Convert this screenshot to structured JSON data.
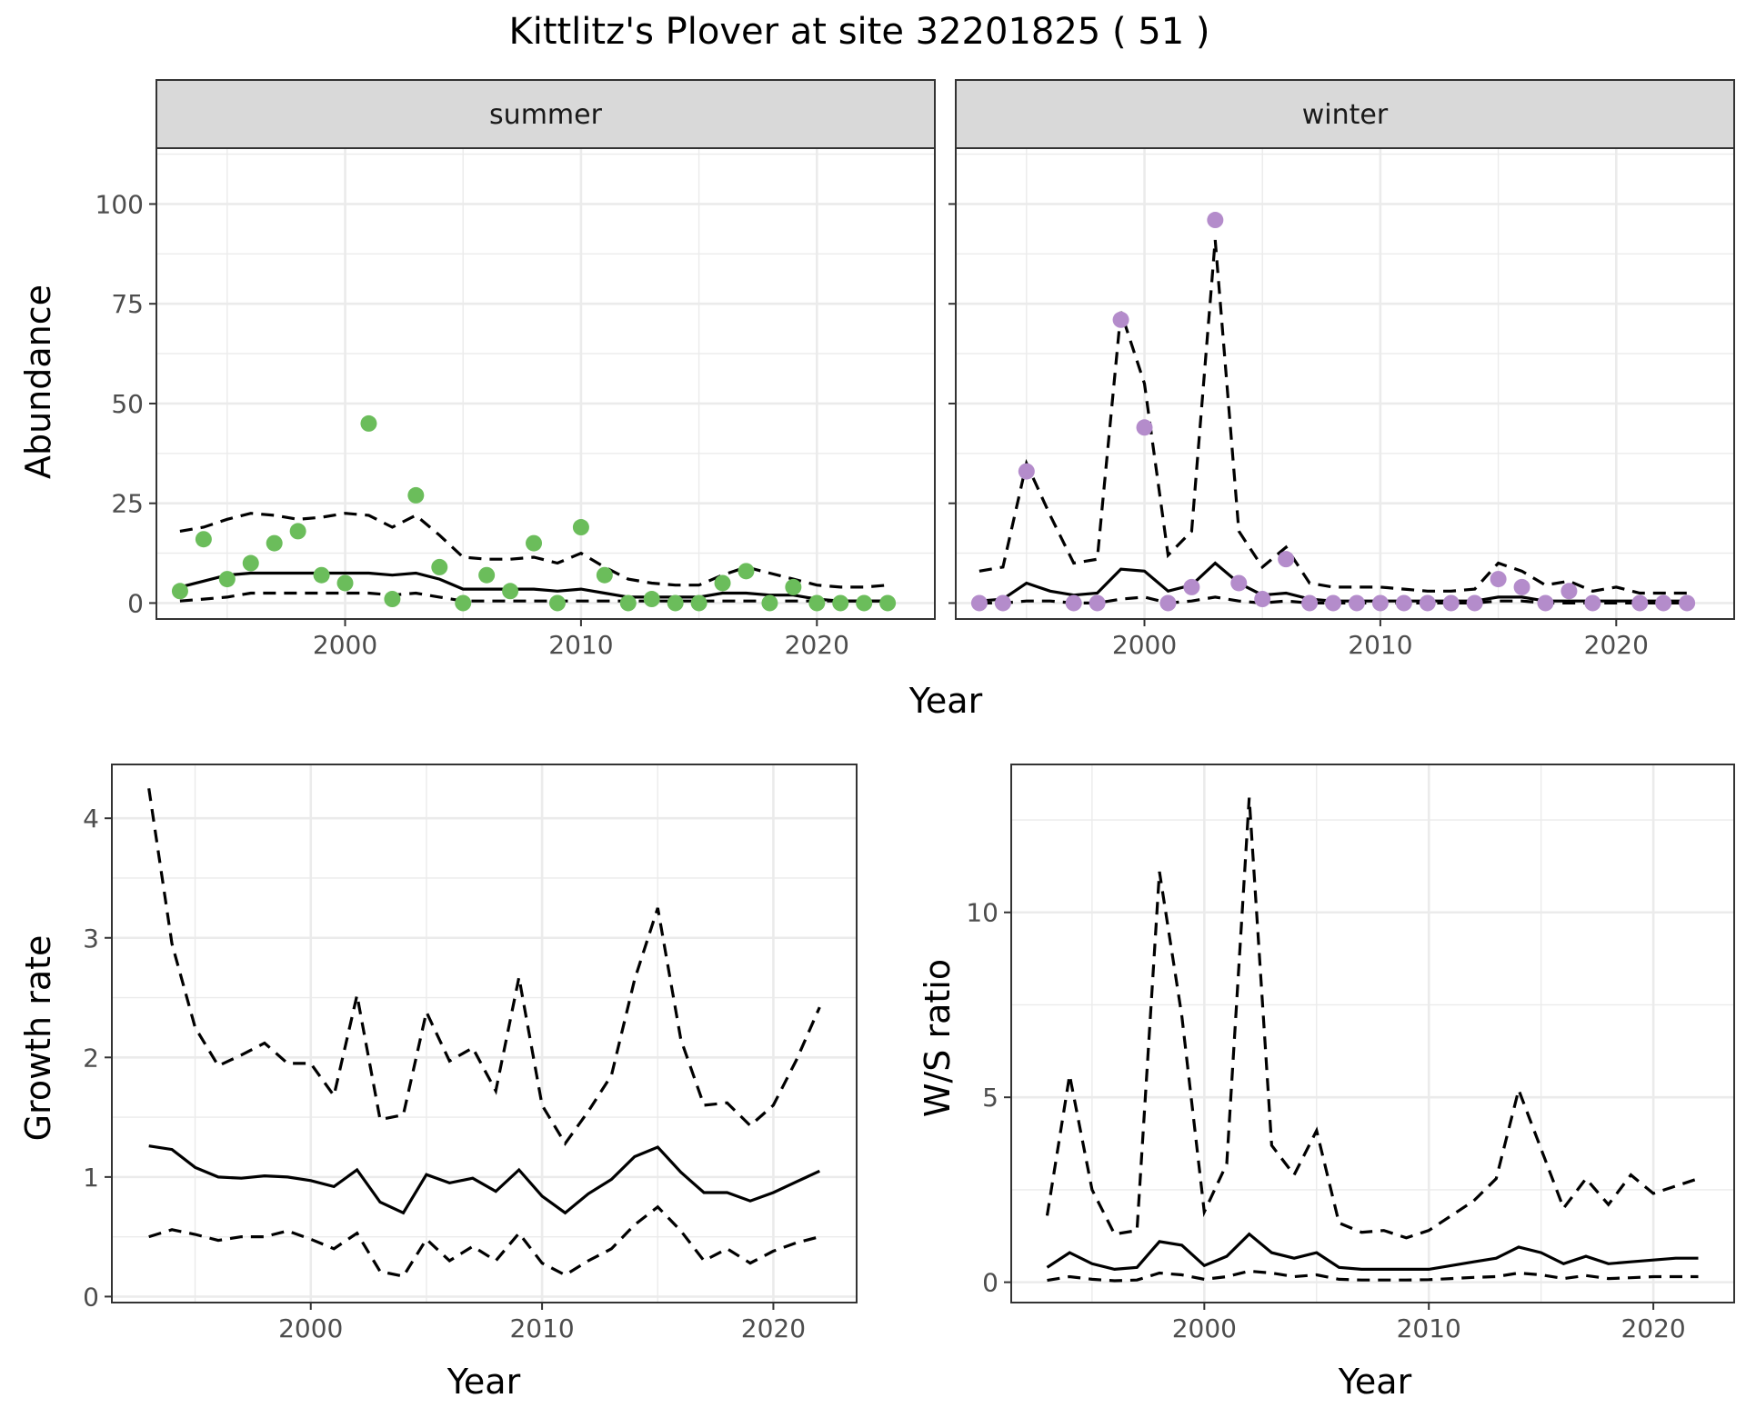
{
  "title": "Kittlitz's Plover at site 32201825 ( 51 )",
  "colors": {
    "summer_points": "#6BBD5B",
    "winter_points": "#B48CCB",
    "lines": "#000000",
    "strip_fill": "#D9D9D9",
    "grid": "#EBEBEB",
    "panel_border": "#333333"
  },
  "chart_data": [
    {
      "type": "scatter",
      "panel": "summer",
      "strip_label": "summer",
      "xlabel": "Year",
      "ylabel": "Abundance",
      "xlim": [
        1992,
        2025
      ],
      "ylim": [
        -4,
        114
      ],
      "xticks": [
        2000,
        2010,
        2020
      ],
      "yticks": [
        0,
        25,
        50,
        75,
        100
      ],
      "grid": true,
      "points": {
        "x": [
          1993,
          1994,
          1995,
          1996,
          1997,
          1998,
          1999,
          2000,
          2001,
          2002,
          2003,
          2004,
          2005,
          2006,
          2007,
          2008,
          2009,
          2010,
          2011,
          2012,
          2013,
          2014,
          2015,
          2016,
          2017,
          2018,
          2019,
          2020,
          2021,
          2022,
          2023
        ],
        "y": [
          3,
          16,
          6,
          10,
          15,
          18,
          7,
          5,
          45,
          1,
          27,
          9,
          0,
          7,
          3,
          15,
          0,
          19,
          7,
          0,
          1,
          0,
          0,
          5,
          8,
          0,
          4,
          0,
          0,
          0,
          0
        ]
      },
      "lines": [
        {
          "style": "solid",
          "x": [
            1993,
            1994,
            1995,
            1996,
            1997,
            1998,
            1999,
            2000,
            2001,
            2002,
            2003,
            2004,
            2005,
            2006,
            2007,
            2008,
            2009,
            2010,
            2011,
            2012,
            2013,
            2014,
            2015,
            2016,
            2017,
            2018,
            2019,
            2020,
            2021,
            2022,
            2023
          ],
          "y": [
            4,
            5.5,
            7,
            7.5,
            7.5,
            7.5,
            7.5,
            7.5,
            7.5,
            7,
            7.5,
            6,
            3.5,
            3.5,
            3.5,
            3.5,
            3,
            3.5,
            2.5,
            1.5,
            1.5,
            1.5,
            1.5,
            2.5,
            2.5,
            2,
            2,
            1,
            0.5,
            0.5,
            0.5
          ]
        },
        {
          "style": "dashed",
          "x": [
            1993,
            1994,
            1995,
            1996,
            1997,
            1998,
            1999,
            2000,
            2001,
            2002,
            2003,
            2004,
            2005,
            2006,
            2007,
            2008,
            2009,
            2010,
            2011,
            2012,
            2013,
            2014,
            2015,
            2016,
            2017,
            2018,
            2019,
            2020,
            2021,
            2022,
            2023
          ],
          "y": [
            18,
            19,
            21,
            22.5,
            22,
            21,
            21.5,
            22.5,
            22,
            19,
            22,
            17,
            11.5,
            11,
            11,
            11.5,
            10,
            12.5,
            9,
            6,
            5,
            4.5,
            4.5,
            7,
            9,
            7.5,
            6,
            4.5,
            4,
            4,
            4.5
          ]
        },
        {
          "style": "dashed",
          "x": [
            1993,
            1994,
            1995,
            1996,
            1997,
            1998,
            1999,
            2000,
            2001,
            2002,
            2003,
            2004,
            2005,
            2006,
            2007,
            2008,
            2009,
            2010,
            2011,
            2012,
            2013,
            2014,
            2015,
            2016,
            2017,
            2018,
            2019,
            2020,
            2021,
            2022,
            2023
          ],
          "y": [
            0.5,
            1,
            1.5,
            2.5,
            2.5,
            2.5,
            2.5,
            2.5,
            2.5,
            2,
            2.5,
            1.5,
            0.5,
            0.5,
            0.5,
            0.5,
            0.5,
            0.5,
            0.5,
            0.5,
            0.5,
            0.5,
            0.5,
            0.5,
            0.5,
            0.5,
            0.5,
            0.5,
            0.5,
            0.5,
            0.5
          ]
        }
      ]
    },
    {
      "type": "scatter",
      "panel": "winter",
      "strip_label": "winter",
      "xlabel": "Year",
      "ylabel": "Abundance",
      "xlim": [
        1992,
        2025
      ],
      "ylim": [
        -4,
        114
      ],
      "xticks": [
        2000,
        2010,
        2020
      ],
      "yticks": [
        0,
        25,
        50,
        75,
        100
      ],
      "grid": true,
      "points": {
        "x": [
          1993,
          1994,
          1995,
          1997,
          1998,
          1999,
          2000,
          2001,
          2002,
          2003,
          2004,
          2005,
          2006,
          2007,
          2008,
          2009,
          2010,
          2011,
          2012,
          2013,
          2014,
          2015,
          2016,
          2017,
          2018,
          2019,
          2021,
          2022,
          2023
        ],
        "y": [
          0,
          0,
          33,
          0,
          0,
          71,
          44,
          0,
          4,
          96,
          5,
          1,
          11,
          0,
          0,
          0,
          0,
          0,
          0,
          0,
          0,
          6,
          4,
          0,
          3,
          0,
          0,
          0,
          0
        ]
      },
      "lines": [
        {
          "style": "solid",
          "x": [
            1993,
            1994,
            1995,
            1996,
            1997,
            1998,
            1999,
            2000,
            2001,
            2002,
            2003,
            2004,
            2005,
            2006,
            2007,
            2008,
            2009,
            2010,
            2011,
            2012,
            2013,
            2014,
            2015,
            2016,
            2017,
            2018,
            2019,
            2020,
            2021,
            2022,
            2023
          ],
          "y": [
            0.5,
            1,
            5,
            3,
            2,
            2.5,
            8.5,
            8,
            3,
            4.5,
            10,
            5,
            2,
            2.5,
            1,
            0.5,
            0.5,
            0.5,
            0.5,
            0.5,
            0.5,
            0.5,
            1.5,
            1.5,
            0.5,
            0.5,
            0.5,
            0.5,
            0.5,
            0.5,
            0.5
          ]
        },
        {
          "style": "dashed",
          "x": [
            1993,
            1994,
            1995,
            1996,
            1997,
            1998,
            1999,
            2000,
            2001,
            2002,
            2003,
            2004,
            2005,
            2006,
            2007,
            2008,
            2009,
            2010,
            2011,
            2012,
            2013,
            2014,
            2015,
            2016,
            2017,
            2018,
            2019,
            2020,
            2021,
            2022,
            2023
          ],
          "y": [
            8,
            9,
            35,
            22,
            10,
            11,
            73,
            55,
            12,
            18,
            91,
            18,
            9,
            14,
            5,
            4,
            4,
            4,
            3.5,
            3,
            3,
            3.5,
            10,
            8,
            4.5,
            5.5,
            3,
            4,
            2.5,
            2.5,
            2.5
          ]
        },
        {
          "style": "dashed",
          "x": [
            1993,
            1994,
            1995,
            1996,
            1997,
            1998,
            1999,
            2000,
            2001,
            2002,
            2003,
            2004,
            2005,
            2006,
            2007,
            2008,
            2009,
            2010,
            2011,
            2012,
            2013,
            2014,
            2015,
            2016,
            2017,
            2018,
            2019,
            2020,
            2021,
            2022,
            2023
          ],
          "y": [
            0,
            0,
            0.5,
            0.5,
            0,
            0,
            1,
            1.5,
            0,
            0.5,
            1.5,
            0.5,
            0,
            0.5,
            0,
            0,
            0,
            0,
            0,
            0,
            0,
            0,
            0.5,
            0.5,
            0,
            0,
            0,
            0,
            0,
            0,
            0
          ]
        }
      ]
    },
    {
      "type": "line",
      "panel": "growth",
      "xlabel": "Year",
      "ylabel": "Growth rate",
      "xlim": [
        1991.4,
        2023.6
      ],
      "ylim": [
        -0.05,
        4.45
      ],
      "xticks": [
        2000,
        2010,
        2020
      ],
      "yticks": [
        0,
        1,
        2,
        3,
        4
      ],
      "grid": true,
      "series": [
        {
          "style": "solid",
          "x": [
            1993,
            1994,
            1995,
            1996,
            1997,
            1998,
            1999,
            2000,
            2001,
            2002,
            2003,
            2004,
            2005,
            2006,
            2007,
            2008,
            2009,
            2010,
            2011,
            2012,
            2013,
            2014,
            2015,
            2016,
            2017,
            2018,
            2019,
            2020,
            2021,
            2022
          ],
          "values": [
            1.26,
            1.23,
            1.08,
            1.0,
            0.99,
            1.01,
            1.0,
            0.97,
            0.92,
            1.06,
            0.79,
            0.7,
            1.02,
            0.95,
            0.99,
            0.88,
            1.06,
            0.84,
            0.7,
            0.86,
            0.98,
            1.17,
            1.25,
            1.04,
            0.87,
            0.87,
            0.8,
            0.87,
            0.96,
            1.05
          ]
        },
        {
          "style": "dashed",
          "x": [
            1993,
            1994,
            1995,
            1996,
            1997,
            1998,
            1999,
            2000,
            2001,
            2002,
            2003,
            2004,
            2005,
            2006,
            2007,
            2008,
            2009,
            2010,
            2011,
            2012,
            2013,
            2014,
            2015,
            2016,
            2017,
            2018,
            2019,
            2020,
            2021,
            2022
          ],
          "values": [
            4.25,
            2.95,
            2.25,
            1.93,
            2.02,
            2.12,
            1.95,
            1.95,
            1.68,
            2.52,
            1.48,
            1.52,
            2.38,
            1.97,
            2.08,
            1.72,
            2.67,
            1.6,
            1.28,
            1.55,
            1.85,
            2.65,
            3.25,
            2.15,
            1.6,
            1.62,
            1.43,
            1.6,
            1.98,
            2.42
          ]
        },
        {
          "style": "dashed",
          "x": [
            1993,
            1994,
            1995,
            1996,
            1997,
            1998,
            1999,
            2000,
            2001,
            2002,
            2003,
            2004,
            2005,
            2006,
            2007,
            2008,
            2009,
            2010,
            2011,
            2012,
            2013,
            2014,
            2015,
            2016,
            2017,
            2018,
            2019,
            2020,
            2021,
            2022
          ],
          "values": [
            0.5,
            0.56,
            0.52,
            0.47,
            0.5,
            0.5,
            0.55,
            0.48,
            0.4,
            0.53,
            0.21,
            0.17,
            0.48,
            0.3,
            0.42,
            0.3,
            0.53,
            0.28,
            0.18,
            0.3,
            0.4,
            0.6,
            0.75,
            0.55,
            0.3,
            0.4,
            0.28,
            0.38,
            0.45,
            0.5
          ]
        }
      ]
    },
    {
      "type": "line",
      "panel": "ratio",
      "xlabel": "Year",
      "ylabel": "W/S ratio",
      "xlim": [
        1991.4,
        2023.6
      ],
      "ylim": [
        -0.55,
        14.0
      ],
      "xticks": [
        2000,
        2010,
        2020
      ],
      "yticks": [
        0,
        5,
        10
      ],
      "grid": true,
      "series": [
        {
          "style": "solid",
          "x": [
            1993,
            1994,
            1995,
            1996,
            1997,
            1998,
            1999,
            2000,
            2001,
            2002,
            2003,
            2004,
            2005,
            2006,
            2007,
            2008,
            2009,
            2010,
            2011,
            2012,
            2013,
            2014,
            2015,
            2016,
            2017,
            2018,
            2019,
            2020,
            2021,
            2022
          ],
          "values": [
            0.4,
            0.8,
            0.5,
            0.35,
            0.4,
            1.1,
            1.0,
            0.45,
            0.7,
            1.3,
            0.8,
            0.65,
            0.8,
            0.4,
            0.35,
            0.35,
            0.35,
            0.35,
            0.45,
            0.55,
            0.65,
            0.95,
            0.8,
            0.5,
            0.7,
            0.5,
            0.55,
            0.6,
            0.65,
            0.65
          ]
        },
        {
          "style": "dashed",
          "x": [
            1993,
            1994,
            1995,
            1996,
            1997,
            1998,
            1999,
            2000,
            2001,
            2002,
            2003,
            2004,
            2005,
            2006,
            2007,
            2008,
            2009,
            2010,
            2011,
            2012,
            2013,
            2014,
            2015,
            2016,
            2017,
            2018,
            2019,
            2020,
            2021,
            2022
          ],
          "values": [
            1.8,
            5.6,
            2.5,
            1.3,
            1.4,
            11.1,
            7.2,
            1.9,
            3.2,
            13.1,
            3.7,
            2.9,
            4.1,
            1.6,
            1.35,
            1.4,
            1.2,
            1.4,
            1.8,
            2.2,
            2.8,
            5.2,
            3.6,
            2.0,
            2.8,
            2.1,
            2.9,
            2.4,
            2.6,
            2.8
          ]
        },
        {
          "style": "dashed",
          "x": [
            1993,
            1994,
            1995,
            1996,
            1997,
            1998,
            1999,
            2000,
            2001,
            2002,
            2003,
            2004,
            2005,
            2006,
            2007,
            2008,
            2009,
            2010,
            2011,
            2012,
            2013,
            2014,
            2015,
            2016,
            2017,
            2018,
            2019,
            2020,
            2021,
            2022
          ],
          "values": [
            0.05,
            0.15,
            0.08,
            0.04,
            0.06,
            0.25,
            0.2,
            0.08,
            0.15,
            0.3,
            0.25,
            0.15,
            0.2,
            0.08,
            0.06,
            0.06,
            0.06,
            0.07,
            0.1,
            0.13,
            0.15,
            0.25,
            0.2,
            0.1,
            0.18,
            0.1,
            0.12,
            0.15,
            0.15,
            0.15
          ]
        }
      ]
    }
  ]
}
